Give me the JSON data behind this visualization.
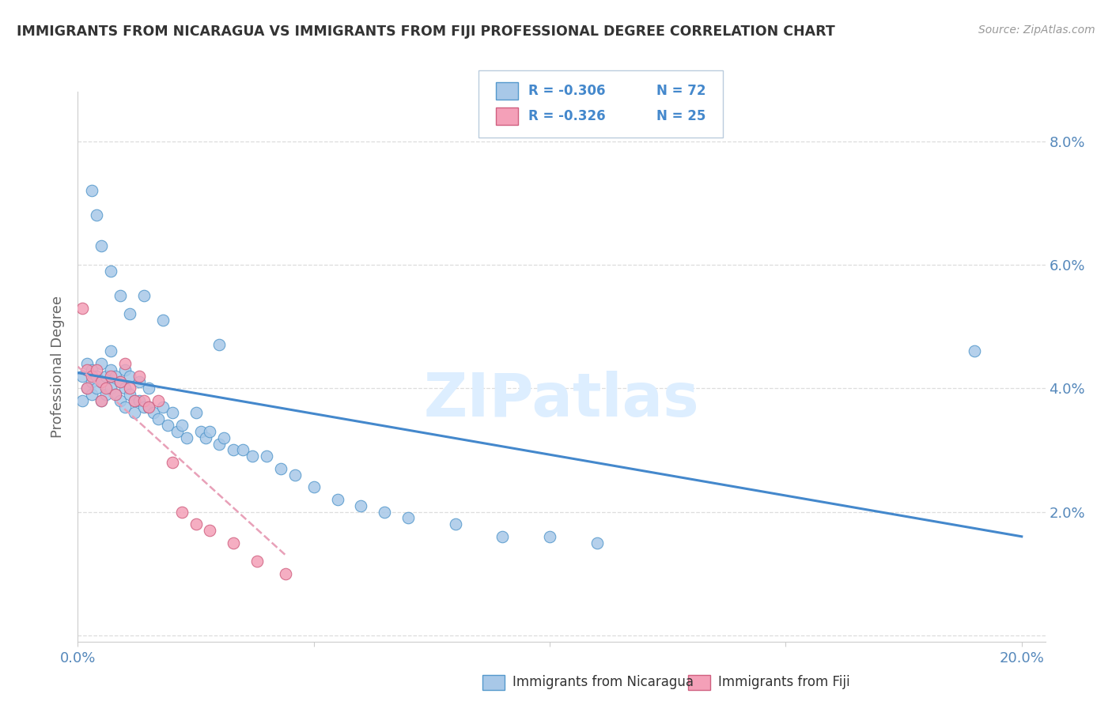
{
  "title": "IMMIGRANTS FROM NICARAGUA VS IMMIGRANTS FROM FIJI PROFESSIONAL DEGREE CORRELATION CHART",
  "source": "Source: ZipAtlas.com",
  "ylabel": "Professional Degree",
  "xlim": [
    0.0,
    0.205
  ],
  "ylim": [
    -0.001,
    0.088
  ],
  "legend_r1": "-0.306",
  "legend_n1": "72",
  "legend_r2": "-0.326",
  "legend_n2": "25",
  "legend_label1": "Immigrants from Nicaragua",
  "legend_label2": "Immigrants from Fiji",
  "blue_color": "#a8c8e8",
  "pink_color": "#f4a0b8",
  "blue_edge_color": "#5599cc",
  "pink_edge_color": "#d06080",
  "blue_line_color": "#4488cc",
  "pink_line_color": "#e8a0b8",
  "axis_color": "#5588bb",
  "grid_color": "#dddddd",
  "nicaragua_x": [
    0.001,
    0.001,
    0.002,
    0.002,
    0.003,
    0.003,
    0.003,
    0.004,
    0.004,
    0.005,
    0.005,
    0.005,
    0.006,
    0.006,
    0.007,
    0.007,
    0.007,
    0.008,
    0.008,
    0.009,
    0.009,
    0.01,
    0.01,
    0.01,
    0.011,
    0.011,
    0.012,
    0.012,
    0.013,
    0.013,
    0.014,
    0.015,
    0.015,
    0.016,
    0.017,
    0.018,
    0.019,
    0.02,
    0.021,
    0.022,
    0.023,
    0.025,
    0.026,
    0.027,
    0.028,
    0.03,
    0.031,
    0.033,
    0.035,
    0.037,
    0.04,
    0.043,
    0.046,
    0.05,
    0.055,
    0.06,
    0.065,
    0.07,
    0.08,
    0.09,
    0.1,
    0.11,
    0.19,
    0.003,
    0.004,
    0.005,
    0.007,
    0.009,
    0.011,
    0.014,
    0.018,
    0.03
  ],
  "nicaragua_y": [
    0.042,
    0.038,
    0.044,
    0.04,
    0.043,
    0.041,
    0.039,
    0.042,
    0.04,
    0.044,
    0.041,
    0.038,
    0.042,
    0.039,
    0.046,
    0.043,
    0.04,
    0.042,
    0.039,
    0.041,
    0.038,
    0.043,
    0.04,
    0.037,
    0.042,
    0.039,
    0.038,
    0.036,
    0.041,
    0.038,
    0.037,
    0.04,
    0.037,
    0.036,
    0.035,
    0.037,
    0.034,
    0.036,
    0.033,
    0.034,
    0.032,
    0.036,
    0.033,
    0.032,
    0.033,
    0.031,
    0.032,
    0.03,
    0.03,
    0.029,
    0.029,
    0.027,
    0.026,
    0.024,
    0.022,
    0.021,
    0.02,
    0.019,
    0.018,
    0.016,
    0.016,
    0.015,
    0.046,
    0.072,
    0.068,
    0.063,
    0.059,
    0.055,
    0.052,
    0.055,
    0.051,
    0.047
  ],
  "fiji_x": [
    0.001,
    0.002,
    0.002,
    0.003,
    0.004,
    0.005,
    0.005,
    0.006,
    0.007,
    0.008,
    0.009,
    0.01,
    0.011,
    0.012,
    0.013,
    0.014,
    0.015,
    0.017,
    0.02,
    0.022,
    0.025,
    0.028,
    0.033,
    0.038,
    0.044
  ],
  "fiji_y": [
    0.053,
    0.043,
    0.04,
    0.042,
    0.043,
    0.041,
    0.038,
    0.04,
    0.042,
    0.039,
    0.041,
    0.044,
    0.04,
    0.038,
    0.042,
    0.038,
    0.037,
    0.038,
    0.028,
    0.02,
    0.018,
    0.017,
    0.015,
    0.012,
    0.01
  ],
  "blue_trendline_x": [
    0.0,
    0.2
  ],
  "blue_trendline_y": [
    0.0425,
    0.016
  ],
  "pink_trendline_x": [
    0.0,
    0.044
  ],
  "pink_trendline_y": [
    0.0435,
    0.013
  ]
}
